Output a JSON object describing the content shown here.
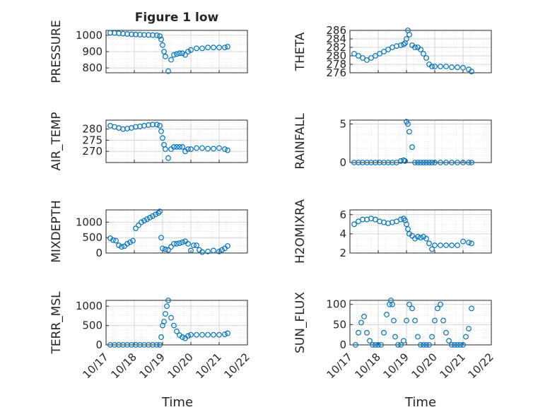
{
  "figure_title": "Figure 1 low",
  "chart_data": [
    {
      "name": "pressure",
      "type": "scatter",
      "title": "Figure 1 low",
      "ylabel": "PRESSURE",
      "ylim": [
        770,
        1030
      ],
      "yticks": [
        800,
        900,
        1000
      ],
      "xlim": [
        17,
        22
      ],
      "x": [
        17.15,
        17.3,
        17.45,
        17.6,
        17.75,
        17.9,
        18.05,
        18.2,
        18.35,
        18.5,
        18.65,
        18.8,
        18.9,
        18.95,
        19.0,
        19.05,
        19.1,
        19.2,
        19.3,
        19.4,
        19.5,
        19.6,
        19.7,
        19.8,
        19.9,
        20.0,
        20.2,
        20.4,
        20.6,
        20.8,
        21.0,
        21.2,
        21.3
      ],
      "y": [
        1015,
        1014,
        1012,
        1010,
        1008,
        1006,
        1005,
        1004,
        1003,
        1002,
        1001,
        1000,
        995,
        975,
        940,
        900,
        870,
        780,
        850,
        880,
        885,
        890,
        890,
        880,
        900,
        910,
        920,
        920,
        925,
        925,
        925,
        925,
        930
      ]
    },
    {
      "name": "theta",
      "type": "scatter",
      "ylabel": "THETA",
      "ylim": [
        276,
        286
      ],
      "yticks": [
        276,
        278,
        280,
        282,
        284,
        286
      ],
      "ytick_labels": [
        "276",
        "278",
        "280",
        "282",
        "284",
        "286"
      ],
      "xlim": [
        17,
        22
      ],
      "x": [
        17.15,
        17.3,
        17.45,
        17.6,
        17.75,
        17.9,
        18.05,
        18.2,
        18.35,
        18.5,
        18.65,
        18.8,
        18.9,
        18.95,
        19.0,
        19.05,
        19.1,
        19.2,
        19.3,
        19.4,
        19.5,
        19.6,
        19.7,
        19.8,
        19.9,
        20.0,
        20.2,
        20.4,
        20.6,
        20.8,
        21.0,
        21.2,
        21.3
      ],
      "y": [
        280.5,
        280.0,
        279.5,
        279.0,
        279.5,
        280.0,
        280.5,
        281.0,
        281.5,
        282.0,
        282.3,
        282.5,
        282.7,
        283.0,
        284.0,
        286.0,
        285.0,
        282.5,
        282.0,
        282.0,
        281.5,
        280.5,
        279.5,
        278.0,
        277.5,
        277.5,
        277.5,
        277.5,
        277.3,
        277.3,
        277.2,
        276.8,
        276.3
      ]
    },
    {
      "name": "air_temp",
      "type": "scatter",
      "ylabel": "AIR_TEMP",
      "ylim": [
        265,
        284
      ],
      "yticks": [
        270,
        275,
        280
      ],
      "xlim": [
        17,
        22
      ],
      "x": [
        17.15,
        17.3,
        17.45,
        17.6,
        17.75,
        17.9,
        18.05,
        18.2,
        18.35,
        18.5,
        18.65,
        18.8,
        18.9,
        18.95,
        19.0,
        19.05,
        19.1,
        19.2,
        19.3,
        19.4,
        19.5,
        19.6,
        19.7,
        19.8,
        19.9,
        20.0,
        20.2,
        20.4,
        20.6,
        20.8,
        21.0,
        21.2,
        21.3
      ],
      "y": [
        281.5,
        281.0,
        280.5,
        280.0,
        280.2,
        280.5,
        281.0,
        281.2,
        281.5,
        281.8,
        282.0,
        282.0,
        281.5,
        279.0,
        276.0,
        273.0,
        271.0,
        267.0,
        271.0,
        272.0,
        272.0,
        272.0,
        272.0,
        270.0,
        271.0,
        271.0,
        271.5,
        271.5,
        271.2,
        271.2,
        271.5,
        271.0,
        270.5
      ]
    },
    {
      "name": "rainfall",
      "type": "scatter",
      "ylabel": "RAINFALL",
      "ylim": [
        0,
        5.5
      ],
      "yticks": [
        0,
        5
      ],
      "xlim": [
        17,
        22
      ],
      "x": [
        17.15,
        17.3,
        17.45,
        17.6,
        17.75,
        17.9,
        18.05,
        18.2,
        18.35,
        18.5,
        18.65,
        18.8,
        18.9,
        18.95,
        19.0,
        19.05,
        19.1,
        19.2,
        19.3,
        19.4,
        19.5,
        19.6,
        19.7,
        19.8,
        19.9,
        20.0,
        20.2,
        20.4,
        20.6,
        20.8,
        21.0,
        21.2,
        21.3
      ],
      "y": [
        0,
        0,
        0,
        0,
        0,
        0,
        0,
        0,
        0,
        0,
        0,
        0.2,
        0.3,
        0.2,
        5.3,
        5.0,
        4.0,
        2.0,
        0,
        0,
        0,
        0,
        0,
        0,
        0,
        0,
        0,
        0,
        0,
        0,
        0,
        0,
        0
      ]
    },
    {
      "name": "mixdepth",
      "type": "scatter",
      "ylabel": "MIXDEPTH",
      "ylim": [
        0,
        1400
      ],
      "yticks": [
        0,
        500,
        1000
      ],
      "xlim": [
        17,
        22
      ],
      "x": [
        17.15,
        17.25,
        17.35,
        17.45,
        17.55,
        17.65,
        17.75,
        17.85,
        17.95,
        18.05,
        18.15,
        18.25,
        18.35,
        18.45,
        18.55,
        18.65,
        18.75,
        18.85,
        18.9,
        18.95,
        19.0,
        19.1,
        19.2,
        19.3,
        19.4,
        19.5,
        19.6,
        19.7,
        19.8,
        19.9,
        20.0,
        20.1,
        20.2,
        20.3,
        20.4,
        20.6,
        20.8,
        21.0,
        21.1,
        21.2,
        21.3
      ],
      "y": [
        480,
        420,
        400,
        250,
        200,
        220,
        300,
        350,
        400,
        800,
        900,
        1000,
        1050,
        1100,
        1150,
        1200,
        1250,
        1300,
        1350,
        500,
        150,
        120,
        100,
        200,
        300,
        300,
        320,
        350,
        380,
        300,
        80,
        250,
        250,
        100,
        30,
        50,
        80,
        50,
        100,
        150,
        230
      ]
    },
    {
      "name": "h2omixra",
      "type": "scatter",
      "ylabel": "H2OMIXRA",
      "ylim": [
        2,
        6.5
      ],
      "yticks": [
        2,
        4,
        6
      ],
      "xlim": [
        17,
        22
      ],
      "x": [
        17.15,
        17.3,
        17.45,
        17.6,
        17.75,
        17.9,
        18.05,
        18.2,
        18.35,
        18.5,
        18.65,
        18.8,
        18.9,
        18.95,
        19.0,
        19.05,
        19.1,
        19.2,
        19.3,
        19.4,
        19.5,
        19.6,
        19.7,
        19.8,
        19.9,
        20.0,
        20.2,
        20.4,
        20.6,
        20.8,
        21.0,
        21.2,
        21.3
      ],
      "y": [
        5.0,
        5.3,
        5.5,
        5.5,
        5.6,
        5.5,
        5.3,
        5.2,
        5.1,
        5.2,
        5.3,
        5.5,
        5.6,
        5.4,
        5.0,
        4.5,
        4.0,
        3.8,
        3.5,
        3.7,
        3.6,
        3.7,
        3.5,
        3.0,
        2.4,
        2.8,
        2.8,
        2.8,
        2.8,
        2.8,
        3.2,
        3.1,
        3.0
      ]
    },
    {
      "name": "terr_msl",
      "type": "scatter",
      "ylabel": "TERR_MSL",
      "ylim": [
        0,
        1150
      ],
      "yticks": [
        0,
        500,
        1000
      ],
      "xlim": [
        17,
        22
      ],
      "x": [
        17.15,
        17.3,
        17.45,
        17.6,
        17.75,
        17.9,
        18.05,
        18.2,
        18.35,
        18.5,
        18.65,
        18.8,
        18.9,
        18.95,
        19.0,
        19.05,
        19.1,
        19.15,
        19.2,
        19.3,
        19.4,
        19.5,
        19.6,
        19.7,
        19.8,
        19.9,
        20.0,
        20.2,
        20.4,
        20.6,
        20.8,
        21.0,
        21.2,
        21.3
      ],
      "y": [
        0,
        0,
        0,
        0,
        0,
        0,
        0,
        0,
        0,
        0,
        0,
        0,
        0,
        200,
        500,
        600,
        800,
        1000,
        1150,
        700,
        500,
        350,
        250,
        200,
        170,
        230,
        260,
        260,
        260,
        260,
        260,
        260,
        270,
        300
      ]
    },
    {
      "name": "sun_flux",
      "type": "scatter",
      "ylabel": "SUN_FLUX",
      "ylim": [
        0,
        110
      ],
      "yticks": [
        0,
        50,
        100
      ],
      "xlim": [
        17,
        22
      ],
      "x": [
        17.2,
        17.3,
        17.4,
        17.5,
        17.6,
        17.7,
        17.8,
        17.9,
        18.0,
        18.1,
        18.2,
        18.3,
        18.4,
        18.45,
        18.5,
        18.55,
        18.6,
        18.7,
        18.8,
        18.9,
        19.0,
        19.1,
        19.2,
        19.3,
        19.4,
        19.5,
        19.6,
        19.7,
        19.8,
        19.9,
        20.0,
        20.1,
        20.2,
        20.3,
        20.4,
        20.5,
        20.6,
        20.7,
        20.8,
        20.9,
        21.0,
        21.1,
        21.2,
        21.3
      ],
      "y": [
        0,
        30,
        55,
        70,
        30,
        10,
        0,
        0,
        0,
        0,
        30,
        75,
        100,
        110,
        100,
        60,
        20,
        0,
        0,
        10,
        60,
        100,
        90,
        60,
        20,
        0,
        0,
        0,
        0,
        20,
        60,
        90,
        100,
        60,
        30,
        10,
        0,
        0,
        0,
        0,
        0,
        20,
        40,
        90
      ]
    }
  ],
  "shared_x": {
    "ticks": [
      17,
      18,
      19,
      20,
      21,
      22
    ],
    "tick_labels": [
      "10/17",
      "10/18",
      "10/19",
      "10/20",
      "10/21",
      "10/22"
    ],
    "label": "Time"
  },
  "marker_color": "#0072bd"
}
